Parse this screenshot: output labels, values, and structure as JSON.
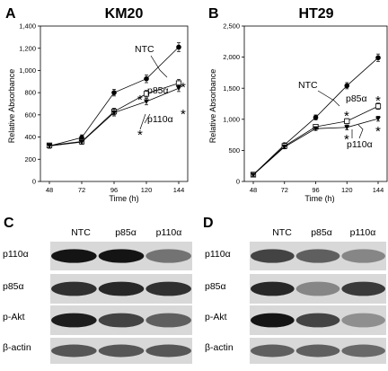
{
  "panels": [
    {
      "letter": "A"
    },
    {
      "letter": "B"
    },
    {
      "letter": "C"
    },
    {
      "letter": "D"
    }
  ],
  "chart_data": [
    {
      "type": "line",
      "title": "KM20",
      "xlabel": "Time (h)",
      "ylabel": "Relative Absorbance",
      "x": [
        48,
        72,
        96,
        120,
        144
      ],
      "xticks": [
        "48",
        "72",
        "96",
        "120",
        "144"
      ],
      "ylim": [
        0,
        1400
      ],
      "yticks": [
        "0",
        "200",
        "400",
        "600",
        "800",
        "1,000",
        "1,200",
        "1,400"
      ],
      "grid": false,
      "series": [
        {
          "name": "NTC",
          "marker": "filled-circle",
          "values": [
            320,
            395,
            800,
            925,
            1210
          ],
          "errors": [
            20,
            25,
            30,
            35,
            40
          ]
        },
        {
          "name": "p85α",
          "marker": "open-square",
          "values": [
            325,
            360,
            630,
            790,
            885
          ],
          "errors": [
            20,
            20,
            30,
            30,
            35
          ]
        },
        {
          "name": "p110α",
          "marker": "filled-triangle",
          "values": [
            320,
            355,
            620,
            720,
            840
          ],
          "errors": [
            20,
            20,
            30,
            30,
            30
          ]
        }
      ],
      "annotations": [
        "*",
        "*",
        "*",
        "*"
      ]
    },
    {
      "type": "line",
      "title": "HT29",
      "xlabel": "Time (h)",
      "ylabel": "Relative Absorbance",
      "x": [
        48,
        72,
        96,
        120,
        144
      ],
      "xticks": [
        "48",
        "72",
        "96",
        "120",
        "144"
      ],
      "ylim": [
        0,
        2500
      ],
      "yticks": [
        "0",
        "500",
        "1,000",
        "1,500",
        "2,000",
        "2,500"
      ],
      "grid": false,
      "series": [
        {
          "name": "NTC",
          "marker": "filled-circle",
          "values": [
            110,
            590,
            1030,
            1540,
            1990
          ],
          "errors": [
            20,
            30,
            40,
            50,
            60
          ]
        },
        {
          "name": "p85α",
          "marker": "open-square",
          "values": [
            110,
            570,
            880,
            970,
            1210
          ],
          "errors": [
            20,
            30,
            40,
            40,
            50
          ]
        },
        {
          "name": "p110α",
          "marker": "filled-triangle",
          "values": [
            105,
            555,
            850,
            870,
            1010
          ],
          "errors": [
            20,
            30,
            30,
            40,
            40
          ]
        }
      ],
      "annotations": [
        "*",
        "*",
        "*",
        "*"
      ]
    }
  ],
  "blots": [
    {
      "columns": [
        "NTC",
        "p85α",
        "p110α"
      ],
      "rows": [
        "p110α",
        "p85α",
        "p-Akt",
        "β-actin"
      ],
      "intensity": [
        [
          0.95,
          0.95,
          0.45
        ],
        [
          0.8,
          0.85,
          0.8
        ],
        [
          0.9,
          0.7,
          0.55
        ],
        [
          0.6,
          0.6,
          0.6
        ]
      ]
    },
    {
      "columns": [
        "NTC",
        "p85α",
        "p110α"
      ],
      "rows": [
        "p110α",
        "p85α",
        "p-Akt",
        "β-actin"
      ],
      "intensity": [
        [
          0.7,
          0.55,
          0.35
        ],
        [
          0.85,
          0.35,
          0.75
        ],
        [
          0.95,
          0.7,
          0.3
        ],
        [
          0.55,
          0.55,
          0.5
        ]
      ]
    }
  ]
}
